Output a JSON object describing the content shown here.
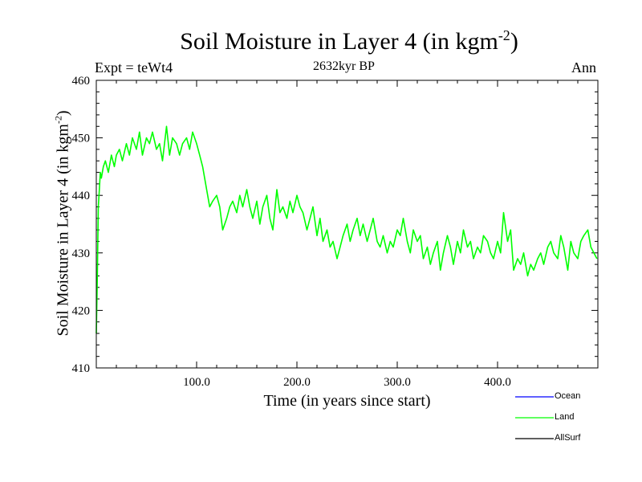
{
  "header": {
    "title_main": "Soil Moisture in Layer 4 (in kgm",
    "title_sup": "-2",
    "title_end": ")",
    "expt": "Expt = teWt4",
    "subtitle": "2632kyr BP",
    "season": "Ann"
  },
  "axes": {
    "xlabel": "Time (in years since start)",
    "ylabel_main": "Soil Moisture in Layer 4 (in kgm",
    "ylabel_sup": "-2",
    "ylabel_end": ")"
  },
  "colors": {
    "ocean": "#0000ff",
    "land": "#00ff00",
    "allsurf": "#000000"
  },
  "chart_data": {
    "type": "line",
    "title": "Soil Moisture in Layer 4 (in kgm-2)",
    "xlabel": "Time (in years since start)",
    "ylabel": "Soil Moisture in Layer 4 (in kgm-2)",
    "xlim": [
      0,
      500
    ],
    "ylim": [
      410,
      460
    ],
    "x_ticks": [
      100,
      200,
      300,
      400
    ],
    "x_tick_labels": [
      "100.0",
      "200.0",
      "300.0",
      "400.0"
    ],
    "y_ticks": [
      410,
      420,
      430,
      440,
      450,
      460
    ],
    "y_tick_labels": [
      "410",
      "420",
      "430",
      "440",
      "450",
      "460"
    ],
    "legend": [
      "Ocean",
      "Land",
      "AllSurf"
    ],
    "series": [
      {
        "name": "Ocean",
        "color": "#0000ff",
        "x": [],
        "y": []
      },
      {
        "name": "Land",
        "color": "#00ff00",
        "x": [
          0,
          1,
          2,
          3,
          4,
          5,
          7,
          9,
          12,
          15,
          18,
          20,
          23,
          26,
          30,
          33,
          36,
          40,
          43,
          46,
          50,
          53,
          56,
          60,
          63,
          66,
          70,
          73,
          76,
          80,
          83,
          86,
          90,
          93,
          96,
          100,
          103,
          106,
          108,
          110,
          113,
          116,
          120,
          123,
          126,
          130,
          133,
          136,
          140,
          143,
          146,
          150,
          153,
          156,
          160,
          163,
          166,
          170,
          173,
          176,
          180,
          183,
          186,
          190,
          193,
          196,
          200,
          203,
          206,
          210,
          213,
          216,
          220,
          223,
          226,
          230,
          233,
          236,
          240,
          243,
          246,
          250,
          253,
          256,
          260,
          263,
          266,
          270,
          273,
          276,
          280,
          283,
          286,
          290,
          293,
          296,
          300,
          303,
          306,
          310,
          313,
          316,
          320,
          323,
          326,
          330,
          333,
          336,
          340,
          343,
          346,
          350,
          353,
          356,
          360,
          363,
          366,
          370,
          373,
          376,
          380,
          383,
          386,
          390,
          393,
          396,
          400,
          403,
          406,
          410,
          413,
          416,
          420,
          423,
          426,
          430,
          433,
          436,
          440,
          443,
          446,
          450,
          453,
          456,
          460,
          463,
          466,
          470,
          473,
          476,
          480,
          483,
          486,
          490,
          493,
          496,
          499
        ],
        "y": [
          416,
          426,
          438,
          441,
          444,
          443,
          445,
          446,
          444,
          447,
          445,
          447,
          448,
          446,
          449,
          447,
          450,
          448,
          451,
          447,
          450,
          449,
          451,
          448,
          449,
          446,
          452,
          447,
          450,
          449,
          447,
          449,
          450,
          448,
          451,
          449,
          447,
          445,
          443,
          441,
          438,
          439,
          440,
          438,
          434,
          436,
          438,
          439,
          437,
          440,
          438,
          441,
          438,
          436,
          439,
          435,
          438,
          440,
          436,
          434,
          441,
          437,
          438,
          436,
          439,
          437,
          440,
          438,
          437,
          434,
          436,
          438,
          433,
          436,
          432,
          434,
          431,
          432,
          429,
          431,
          433,
          435,
          432,
          434,
          436,
          433,
          435,
          432,
          434,
          436,
          432,
          431,
          433,
          430,
          432,
          431,
          434,
          433,
          436,
          432,
          430,
          434,
          432,
          433,
          429,
          431,
          428,
          430,
          432,
          427,
          430,
          433,
          431,
          428,
          432,
          430,
          434,
          431,
          432,
          429,
          431,
          430,
          433,
          432,
          430,
          429,
          432,
          430,
          437,
          432,
          434,
          427,
          429,
          428,
          430,
          426,
          428,
          427,
          429,
          430,
          428,
          431,
          432,
          430,
          429,
          433,
          431,
          427,
          432,
          430,
          429,
          432,
          433,
          434,
          431,
          430,
          429
        ]
      },
      {
        "name": "AllSurf",
        "color": "#000000",
        "x": [],
        "y": []
      }
    ]
  }
}
